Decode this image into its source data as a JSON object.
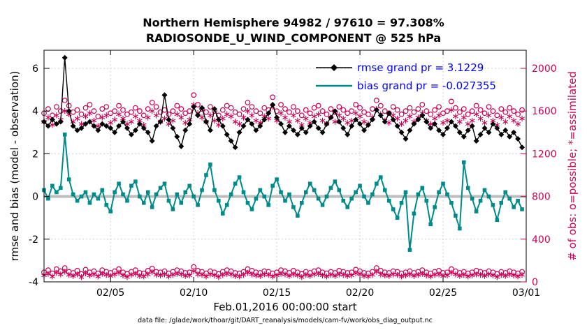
{
  "colors": {
    "rmse": "#000000",
    "bias": "#008b8b",
    "obs": "#cc0055",
    "legend_text": "#0000ff",
    "zero_line": "#bdbdbd",
    "grid": "#d0d0d0"
  },
  "chart_data": {
    "type": "line",
    "title": "Northern Hemisphere 94982 / 97610 = 97.308%",
    "subtitle": "RADIOSONDE_U_WIND_COMPONENT @ 525 hPa",
    "xlabel": "Feb.01,2016 00:00:00 start",
    "ylabel_left": "rmse and bias (model - observation)",
    "ylabel_right": "# of obs: o=possible; *=assimilated",
    "footer": "data file: /glade/work/thoar/git/DART_reanalysis/models/cam-fv/work/obs_diag_output.nc",
    "legend": {
      "rmse": "rmse grand pr = 3.1229",
      "bias": "bias grand pr = -0.027355"
    },
    "legend_position": "top-right-inside",
    "grid": true,
    "x_axis": {
      "start_day": 0,
      "step_days": 0.25,
      "min": 0,
      "max": 29,
      "tick_days": [
        4,
        9,
        14,
        19,
        24,
        29
      ],
      "tick_labels": [
        "02/05",
        "02/10",
        "02/15",
        "02/20",
        "02/25",
        "03/01"
      ]
    },
    "y_axis_left": {
      "min": -4,
      "max": 6.85,
      "ticks": [
        -4,
        -2,
        0,
        2,
        4,
        6
      ]
    },
    "y_axis_right": {
      "ticks": [
        0,
        400,
        800,
        1200,
        1600,
        2000
      ],
      "to_left_scale": 0.005,
      "to_left_offset": -4
    },
    "series": [
      {
        "name": "obs_possible",
        "style": "circle",
        "axis": "right",
        "color_key": "obs",
        "values": [
          1580,
          1620,
          1560,
          1640,
          1600,
          1700,
          1650,
          1590,
          1610,
          1570,
          1630,
          1660,
          1600,
          1550,
          1620,
          1640,
          1580,
          1600,
          1650,
          1610,
          1570,
          1590,
          1630,
          1600,
          1560,
          1620,
          1680,
          1640,
          1590,
          1610,
          1570,
          1600,
          1650,
          1620,
          1580,
          1600,
          1750,
          1660,
          1620,
          1590,
          1640,
          1600,
          1560,
          1610,
          1650,
          1630,
          1590,
          1570,
          1620,
          1680,
          1640,
          1600,
          1580,
          1630,
          1610,
          1730,
          1600,
          1660,
          1620,
          1590,
          1640,
          1600,
          1560,
          1610,
          1580,
          1630,
          1650,
          1600,
          1570,
          1620,
          1590,
          1640,
          1610,
          1580,
          1600,
          1660,
          1630,
          1590,
          1570,
          1620,
          1700,
          1650,
          1600,
          1580,
          1640,
          1610,
          1570,
          1600,
          1630,
          1590,
          1620,
          1660,
          1600,
          1570,
          1610,
          1640,
          1580,
          1600,
          1690,
          1630,
          1590,
          1620,
          1570,
          1600,
          1650,
          1610,
          1580,
          1640,
          1600,
          1560,
          1620,
          1590,
          1630,
          1600,
          1570,
          1610
        ]
      },
      {
        "name": "obs_assimilated",
        "style": "asterisk",
        "axis": "right",
        "color_key": "obs",
        "values": [
          1500,
          1540,
          1470,
          1560,
          1520,
          1600,
          1570,
          1500,
          1530,
          1480,
          1550,
          1580,
          1510,
          1460,
          1540,
          1560,
          1490,
          1520,
          1570,
          1530,
          1480,
          1500,
          1550,
          1510,
          1470,
          1540,
          1600,
          1560,
          1500,
          1530,
          1480,
          1510,
          1570,
          1540,
          1490,
          1520,
          1660,
          1580,
          1540,
          1500,
          1560,
          1510,
          1470,
          1530,
          1570,
          1550,
          1500,
          1480,
          1540,
          1600,
          1560,
          1510,
          1490,
          1550,
          1530,
          1640,
          1510,
          1580,
          1540,
          1500,
          1560,
          1510,
          1470,
          1530,
          1490,
          1550,
          1570,
          1510,
          1480,
          1540,
          1500,
          1560,
          1530,
          1490,
          1510,
          1580,
          1550,
          1500,
          1480,
          1540,
          1620,
          1570,
          1510,
          1490,
          1560,
          1530,
          1480,
          1510,
          1550,
          1500,
          1540,
          1580,
          1510,
          1480,
          1530,
          1560,
          1490,
          1510,
          1610,
          1550,
          1500,
          1540,
          1480,
          1510,
          1570,
          1530,
          1490,
          1560,
          1510,
          1470,
          1540,
          1500,
          1550,
          1510,
          1480,
          1530
        ]
      },
      {
        "name": "obs_possible_low_band",
        "style": "circle",
        "axis": "right",
        "color_key": "obs",
        "values": [
          90,
          110,
          80,
          120,
          100,
          130,
          95,
          85,
          105,
          75,
          115,
          90,
          100,
          80,
          110,
          95,
          85,
          100,
          120,
          90,
          75,
          95,
          110,
          85,
          80,
          105,
          125,
          95,
          90,
          100,
          80,
          95,
          110,
          100,
          85,
          90,
          140,
          105,
          95,
          80,
          100,
          90,
          75,
          95,
          110,
          100,
          85,
          80,
          95,
          120,
          105,
          90,
          85,
          100,
          95,
          80,
          90,
          110,
          100,
          85,
          105,
          90,
          75,
          95,
          85,
          100,
          110,
          90,
          80,
          95,
          85,
          105,
          95,
          85,
          90,
          115,
          100,
          85,
          80,
          95,
          130,
          105,
          90,
          85,
          100,
          95,
          80,
          90,
          100,
          85,
          95,
          110,
          90,
          80,
          95,
          105,
          85,
          90,
          120,
          100,
          85,
          95,
          80,
          90,
          105,
          95,
          85,
          100,
          90,
          75,
          95,
          85,
          100,
          90,
          80,
          95
        ]
      },
      {
        "name": "obs_assimilated_low_band",
        "style": "asterisk",
        "axis": "right",
        "color_key": "obs",
        "values": [
          60,
          75,
          50,
          85,
          70,
          95,
          65,
          55,
          70,
          45,
          80,
          60,
          70,
          50,
          75,
          65,
          55,
          70,
          85,
          60,
          45,
          65,
          75,
          55,
          50,
          70,
          90,
          65,
          60,
          70,
          50,
          65,
          75,
          70,
          55,
          60,
          100,
          70,
          65,
          50,
          70,
          60,
          45,
          65,
          75,
          70,
          55,
          50,
          65,
          85,
          70,
          60,
          55,
          70,
          65,
          50,
          60,
          75,
          70,
          55,
          70,
          60,
          45,
          65,
          55,
          70,
          75,
          60,
          50,
          65,
          55,
          70,
          65,
          55,
          60,
          80,
          70,
          55,
          50,
          65,
          95,
          70,
          60,
          55,
          70,
          65,
          50,
          60,
          70,
          55,
          65,
          75,
          60,
          50,
          65,
          70,
          55,
          60,
          85,
          70,
          55,
          65,
          50,
          60,
          70,
          65,
          55,
          70,
          60,
          45,
          65,
          55,
          70,
          60,
          50,
          65
        ]
      },
      {
        "name": "bias",
        "style": "line-square",
        "axis": "left",
        "color_key": "bias",
        "values": [
          0.3,
          -0.1,
          0.5,
          0.2,
          0.4,
          2.9,
          0.8,
          0.1,
          -0.2,
          0.0,
          0.2,
          -0.3,
          0.1,
          -0.1,
          0.3,
          -0.4,
          -0.7,
          0.2,
          0.6,
          0.1,
          -0.2,
          0.5,
          0.7,
          0.0,
          -0.3,
          0.2,
          -0.5,
          0.1,
          0.4,
          0.6,
          -0.2,
          -0.6,
          0.1,
          -0.3,
          0.2,
          0.5,
          0.0,
          -0.4,
          0.3,
          1.0,
          1.5,
          0.3,
          -0.2,
          -0.8,
          -0.4,
          0.1,
          0.6,
          0.9,
          0.2,
          -0.3,
          -0.6,
          -0.1,
          0.3,
          0.0,
          -0.4,
          0.5,
          0.8,
          0.2,
          -0.2,
          0.1,
          -0.5,
          -0.9,
          -0.3,
          0.2,
          0.6,
          0.3,
          -0.1,
          -0.4,
          0.0,
          0.4,
          0.7,
          0.3,
          -0.2,
          -0.5,
          -0.1,
          0.2,
          0.5,
          0.0,
          -0.3,
          0.1,
          0.6,
          0.9,
          0.3,
          -0.2,
          -0.6,
          -1.0,
          -0.3,
          0.2,
          -2.5,
          -0.8,
          0.1,
          0.4,
          -0.2,
          -1.3,
          -0.5,
          0.2,
          0.6,
          0.1,
          -0.3,
          -0.9,
          -1.5,
          1.6,
          0.4,
          -0.1,
          -0.7,
          -0.2,
          0.3,
          0.0,
          -0.4,
          -1.1,
          -0.3,
          0.2,
          -0.1,
          -0.5,
          -0.2,
          -0.6
        ]
      },
      {
        "name": "rmse",
        "style": "line-diamond",
        "axis": "left",
        "color_key": "rmse",
        "values": [
          3.5,
          3.3,
          3.6,
          3.4,
          3.5,
          6.5,
          4.0,
          3.3,
          3.1,
          3.2,
          3.4,
          3.5,
          3.3,
          3.1,
          3.4,
          3.3,
          3.2,
          3.0,
          3.3,
          3.5,
          3.2,
          2.9,
          3.1,
          3.4,
          3.2,
          3.0,
          2.6,
          3.3,
          3.5,
          4.75,
          3.6,
          3.2,
          2.8,
          2.35,
          3.1,
          3.4,
          4.2,
          3.8,
          4.15,
          3.5,
          3.1,
          4.1,
          3.6,
          3.3,
          2.9,
          2.6,
          2.3,
          3.0,
          3.3,
          3.6,
          3.4,
          3.1,
          3.3,
          3.6,
          3.9,
          4.3,
          3.7,
          3.4,
          3.0,
          3.3,
          3.1,
          2.9,
          3.2,
          3.0,
          3.3,
          3.5,
          3.2,
          3.0,
          3.4,
          3.7,
          4.0,
          3.5,
          3.2,
          2.9,
          3.3,
          3.6,
          3.4,
          3.1,
          3.35,
          3.6,
          4.05,
          3.8,
          3.5,
          3.9,
          3.6,
          3.3,
          3.0,
          2.7,
          3.1,
          3.4,
          3.6,
          3.8,
          3.5,
          3.2,
          3.4,
          3.1,
          2.9,
          3.2,
          3.5,
          3.3,
          3.0,
          2.8,
          3.1,
          3.3,
          2.6,
          2.9,
          3.2,
          3.0,
          3.4,
          3.2,
          2.9,
          3.1,
          2.8,
          3.0,
          2.7,
          2.3
        ]
      }
    ]
  }
}
